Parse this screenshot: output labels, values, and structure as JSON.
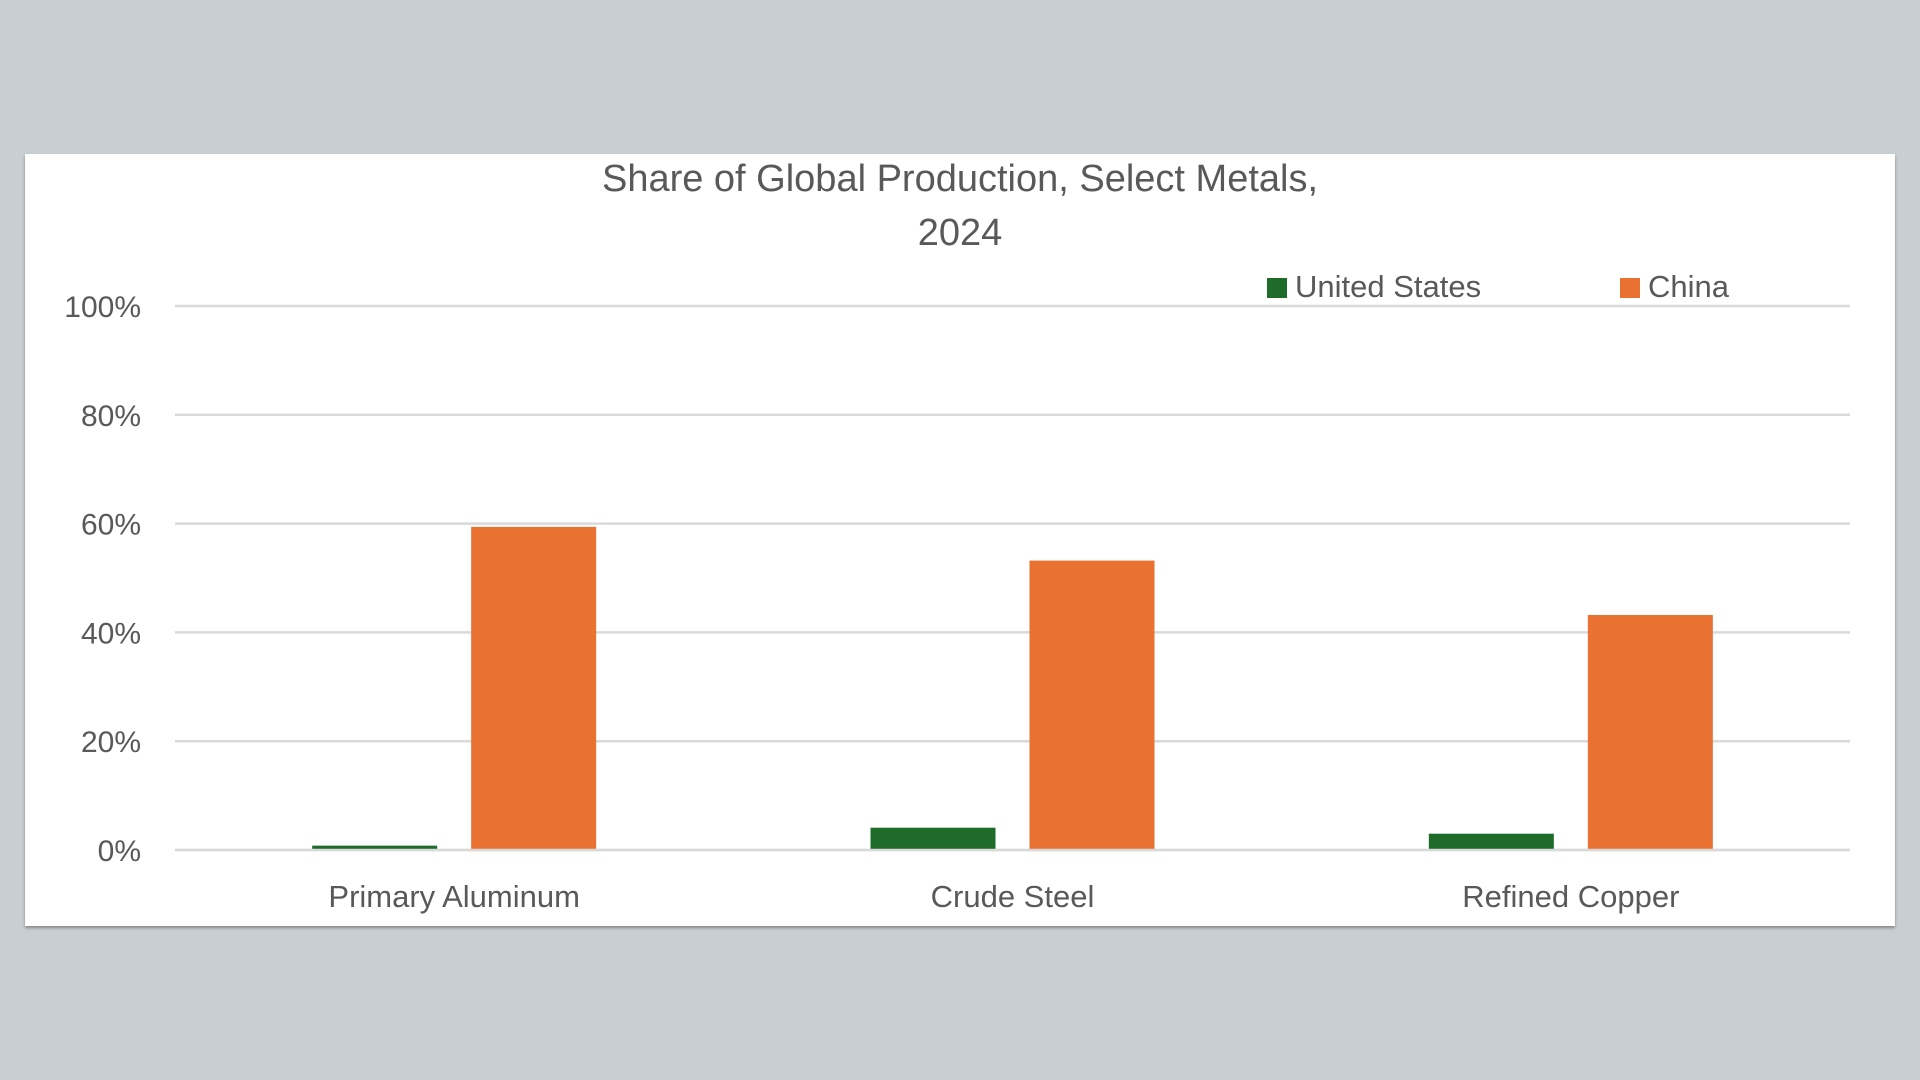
{
  "chart_data": {
    "type": "bar",
    "title_lines": [
      "Share of Global Production, Select Metals,",
      "2024"
    ],
    "categories": [
      "Primary Aluminum",
      "Crude Steel",
      "Refined Copper"
    ],
    "series": [
      {
        "name": "United States",
        "color": "#1e6b2a",
        "values": [
          0.8,
          4.1,
          3.0
        ]
      },
      {
        "name": "China",
        "color": "#e97132",
        "values": [
          59.4,
          53.2,
          43.2
        ]
      }
    ],
    "y_ticks": [
      "0%",
      "20%",
      "40%",
      "60%",
      "80%",
      "100%"
    ],
    "ylim": [
      0,
      100
    ],
    "grid": true,
    "legend_position": "top-right",
    "xlabel": "",
    "ylabel": ""
  }
}
